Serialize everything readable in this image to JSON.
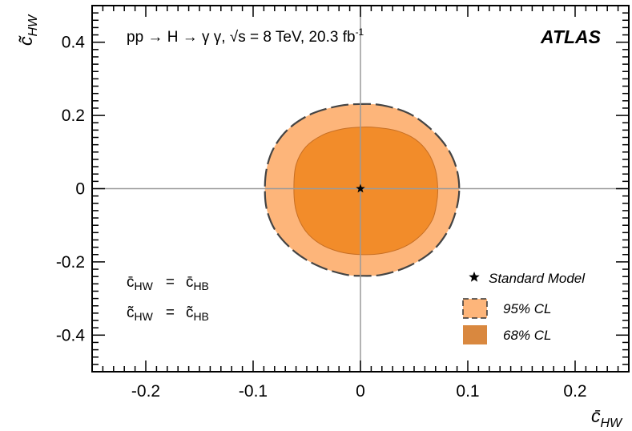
{
  "chart_data": {
    "type": "contour",
    "xlabel": "c̄",
    "xlabel_sub": "HW",
    "ylabel": "c̃",
    "ylabel_sub": "HW",
    "xlim": [
      -0.25,
      0.25
    ],
    "ylim": [
      -0.5,
      0.5
    ],
    "x_ticks": [
      -0.2,
      -0.1,
      0,
      0.1,
      0.2
    ],
    "x_tick_labels": [
      "-0.2",
      "-0.1",
      "0",
      "0.1",
      "0.2"
    ],
    "y_ticks": [
      -0.4,
      -0.2,
      0,
      0.2,
      0.4
    ],
    "y_tick_labels": [
      "-0.4",
      "-0.2",
      "0",
      "0.2",
      "0.4"
    ],
    "reference_lines": {
      "x": 0,
      "y": 0
    },
    "annotations": {
      "process": "pp → H → γ γ, √s = 8 TeV, 20.3 fb",
      "process_sup": "-1",
      "experiment": "ATLAS",
      "constraint1_left": "c̄",
      "constraint1_left_sub": "HW",
      "constraint1_eq": "=",
      "constraint1_right": "c̄",
      "constraint1_right_sub": "HB",
      "constraint2_left": "c̃",
      "constraint2_left_sub": "HW",
      "constraint2_eq": "=",
      "constraint2_right": "c̃",
      "constraint2_right_sub": "HB"
    },
    "legend": {
      "position": "bottom-right",
      "entries": [
        {
          "label": "Standard Model",
          "marker": "star",
          "color": "#000000"
        },
        {
          "label": "95% CL",
          "marker": "box-dashed",
          "color": "#fdb57a"
        },
        {
          "label": "68% CL",
          "marker": "box",
          "color": "#d9883f"
        }
      ]
    },
    "standard_model_point": {
      "x": 0,
      "y": 0
    },
    "series": [
      {
        "name": "95% CL",
        "fill": "#fdb57a",
        "edge": "#444444",
        "edge_style": "dashed",
        "points": [
          [
            0.092,
            0.0
          ],
          [
            0.089,
            0.06
          ],
          [
            0.08,
            0.115
          ],
          [
            0.064,
            0.167
          ],
          [
            0.044,
            0.207
          ],
          [
            0.02,
            0.228
          ],
          [
            0.0,
            0.231
          ],
          [
            -0.02,
            0.226
          ],
          [
            -0.045,
            0.205
          ],
          [
            -0.066,
            0.166
          ],
          [
            -0.08,
            0.115
          ],
          [
            -0.087,
            0.06
          ],
          [
            -0.089,
            0.0
          ],
          [
            -0.087,
            -0.06
          ],
          [
            -0.078,
            -0.12
          ],
          [
            -0.06,
            -0.175
          ],
          [
            -0.038,
            -0.213
          ],
          [
            -0.015,
            -0.234
          ],
          [
            0.0,
            -0.238
          ],
          [
            0.02,
            -0.235
          ],
          [
            0.044,
            -0.213
          ],
          [
            0.066,
            -0.173
          ],
          [
            0.081,
            -0.118
          ],
          [
            0.089,
            -0.06
          ]
        ]
      },
      {
        "name": "68% CL",
        "fill": "#f28c2a",
        "edge": "#c76f24",
        "edge_style": "solid",
        "points": [
          [
            0.072,
            0.0
          ],
          [
            0.07,
            0.05
          ],
          [
            0.063,
            0.098
          ],
          [
            0.051,
            0.135
          ],
          [
            0.034,
            0.158
          ],
          [
            0.015,
            0.167
          ],
          [
            0.0,
            0.168
          ],
          [
            -0.017,
            0.163
          ],
          [
            -0.035,
            0.147
          ],
          [
            -0.051,
            0.114
          ],
          [
            -0.06,
            0.065
          ],
          [
            -0.062,
            0.0
          ],
          [
            -0.06,
            -0.06
          ],
          [
            -0.052,
            -0.112
          ],
          [
            -0.038,
            -0.15
          ],
          [
            -0.02,
            -0.172
          ],
          [
            0.0,
            -0.18
          ],
          [
            0.02,
            -0.177
          ],
          [
            0.04,
            -0.16
          ],
          [
            0.056,
            -0.128
          ],
          [
            0.067,
            -0.085
          ],
          [
            0.071,
            -0.04
          ]
        ]
      }
    ]
  }
}
